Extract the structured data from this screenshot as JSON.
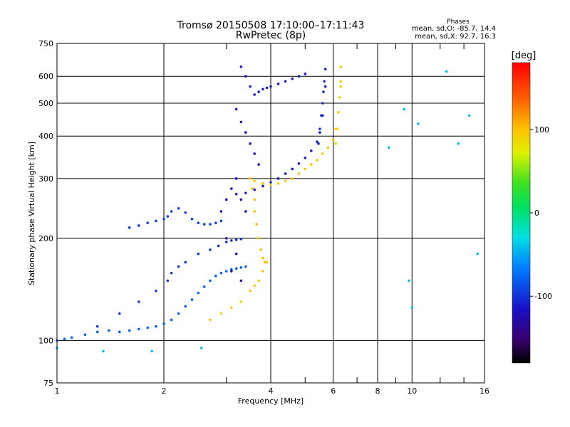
{
  "chart_data": {
    "type": "scatter",
    "title": "Tromsø 20150508 17:10:00–17:11:43",
    "subtitle": "RwPretec (8p)",
    "xlabel": "Frequency [MHz]",
    "ylabel": "Stationary phase Virtual Height [km]",
    "x_scale": "log",
    "y_scale": "log",
    "xlim": [
      1,
      16
    ],
    "ylim": [
      75,
      750
    ],
    "x_ticks": [
      "1",
      "2",
      "4",
      "6",
      "8",
      "10",
      "16"
    ],
    "x_tick_values": [
      1,
      2,
      4,
      6,
      8,
      10,
      16
    ],
    "x_minor_ticks": [
      3,
      5,
      7,
      9,
      12,
      14
    ],
    "y_ticks": [
      "75",
      "100",
      "200",
      "300",
      "400",
      "500",
      "600",
      "750"
    ],
    "y_tick_values": [
      75,
      100,
      200,
      300,
      400,
      500,
      600,
      750
    ],
    "grid": true,
    "phase_stats": {
      "heading": "Phases",
      "line_o": "mean, sd,O: -85.7, 14.4",
      "line_x": "mean, sd,X:  92.7, 16.3"
    },
    "colorbar": {
      "label": "[deg]",
      "range": [
        -180,
        180
      ],
      "ticks": [
        "100",
        "0",
        "-100"
      ],
      "tick_values": [
        100,
        0,
        -100
      ]
    },
    "series": [
      {
        "name": "O-mode lower trace",
        "phase": -80,
        "x": [
          1.0,
          1.05,
          1.1,
          1.2,
          1.3,
          1.4,
          1.5,
          1.6,
          1.7,
          1.8,
          1.9,
          2.0,
          2.1,
          2.2,
          2.3,
          2.4,
          2.5,
          2.6,
          2.7,
          2.8,
          2.9,
          3.0,
          3.1,
          3.2,
          3.3,
          3.4
        ],
        "y": [
          100,
          101,
          102,
          104,
          106,
          107,
          106,
          107,
          108,
          109,
          110,
          112,
          115,
          120,
          126,
          132,
          138,
          144,
          150,
          155,
          158,
          160,
          162,
          163,
          164,
          165
        ]
      },
      {
        "name": "O-mode upper branch",
        "phase": -100,
        "x": [
          1.3,
          1.5,
          1.7,
          1.9,
          2.05,
          2.1,
          2.2,
          2.3,
          2.5,
          2.7,
          2.85,
          3.0,
          3.1,
          3.2,
          3.3
        ],
        "y": [
          110,
          120,
          130,
          140,
          150,
          158,
          165,
          170,
          180,
          185,
          190,
          195,
          197,
          198,
          199
        ]
      },
      {
        "name": "Spread F near 2 MHz",
        "phase": -95,
        "x": [
          1.6,
          1.7,
          1.8,
          1.9,
          2.0,
          2.05,
          2.1,
          2.2,
          2.3,
          2.4,
          2.5,
          2.6,
          2.7,
          2.8,
          2.9
        ],
        "y": [
          215,
          218,
          222,
          225,
          228,
          232,
          240,
          245,
          238,
          228,
          222,
          220,
          220,
          222,
          225
        ]
      },
      {
        "name": "O-mode F2 trace",
        "phase": -110,
        "x": [
          3.2,
          3.4,
          3.6,
          3.8,
          4.0,
          4.2,
          4.4,
          4.6,
          4.8,
          5.0,
          5.2,
          5.4,
          5.5,
          5.6,
          5.7
        ],
        "y": [
          270,
          272,
          278,
          285,
          292,
          300,
          310,
          320,
          332,
          345,
          362,
          385,
          410,
          460,
          560
        ]
      },
      {
        "name": "O-mode near-vertical cusp",
        "phase": -105,
        "x": [
          5.45,
          5.5,
          5.55,
          5.6,
          5.63,
          5.66,
          5.7
        ],
        "y": [
          380,
          420,
          460,
          500,
          540,
          580,
          630
        ]
      },
      {
        "name": "Upper scatter 500-600 km",
        "phase": -110,
        "x": [
          3.3,
          3.4,
          3.5,
          3.6,
          3.7,
          3.8,
          3.9,
          4.0,
          4.2,
          4.4,
          4.6,
          4.8,
          5.0
        ],
        "y": [
          640,
          600,
          560,
          530,
          540,
          550,
          555,
          560,
          570,
          580,
          590,
          600,
          610
        ]
      },
      {
        "name": "Descending trace 340-480 km",
        "phase": -110,
        "x": [
          3.2,
          3.3,
          3.4,
          3.5,
          3.6,
          3.7
        ],
        "y": [
          480,
          440,
          410,
          380,
          355,
          330
        ]
      },
      {
        "name": "Spread F 3-3.4 MHz",
        "phase": -120,
        "x": [
          2.9,
          3.0,
          3.1,
          3.2,
          3.3,
          3.4,
          3.0,
          3.2,
          3.1,
          3.3
        ],
        "y": [
          240,
          260,
          280,
          300,
          260,
          240,
          200,
          180,
          160,
          150
        ]
      },
      {
        "name": "X-mode lower trace",
        "phase": 95,
        "x": [
          2.7,
          2.9,
          3.1,
          3.3,
          3.5,
          3.6,
          3.7,
          3.8,
          3.9
        ],
        "y": [
          115,
          120,
          125,
          130,
          140,
          145,
          150,
          160,
          170
        ]
      },
      {
        "name": "X-mode vertical 3.6 MHz",
        "phase": 100,
        "x": [
          3.5,
          3.55,
          3.6,
          3.6,
          3.65,
          3.7,
          3.75,
          3.8,
          3.85
        ],
        "y": [
          300,
          280,
          260,
          240,
          220,
          200,
          185,
          175,
          170
        ]
      },
      {
        "name": "X-mode F2 trace",
        "phase": 95,
        "x": [
          3.6,
          3.8,
          4.0,
          4.2,
          4.4,
          4.6,
          4.8,
          5.0,
          5.2,
          5.4,
          5.6,
          5.8,
          6.0,
          6.1,
          6.2,
          6.3
        ],
        "y": [
          295,
          290,
          288,
          290,
          295,
          300,
          310,
          320,
          330,
          340,
          355,
          370,
          390,
          420,
          470,
          560
        ]
      },
      {
        "name": "X-mode near-vertical cusp",
        "phase": 90,
        "x": [
          6.1,
          6.15,
          6.2,
          6.25,
          6.3,
          6.3
        ],
        "y": [
          380,
          420,
          470,
          520,
          580,
          640
        ]
      },
      {
        "name": "Isolated echoes",
        "phase": -40,
        "x": [
          1.0,
          1.35,
          1.85,
          2.55,
          8.6,
          9.5,
          10.4,
          12.5,
          13.5,
          14.5,
          15.3,
          9.8,
          10.0
        ],
        "y": [
          95,
          93,
          93,
          95,
          370,
          480,
          435,
          620,
          380,
          460,
          180,
          150,
          125
        ]
      }
    ]
  }
}
